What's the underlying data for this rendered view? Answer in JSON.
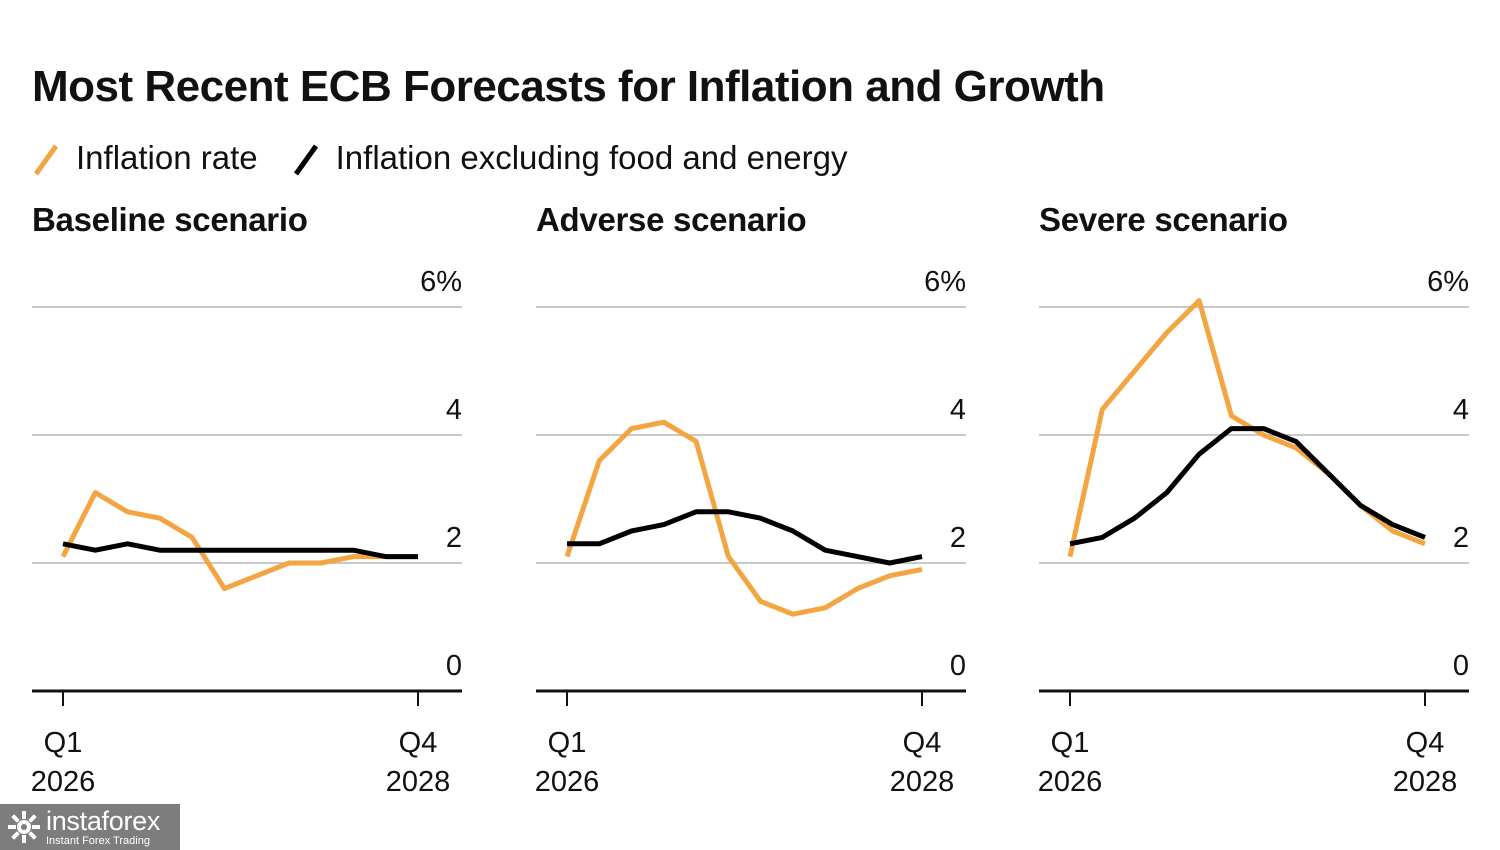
{
  "title": "Most Recent ECB Forecasts for Inflation and Growth",
  "legend": [
    {
      "label": "Inflation rate",
      "color": "#f2a540"
    },
    {
      "label": "Inflation excluding food and energy",
      "color": "#000000"
    }
  ],
  "watermark": {
    "name": "instaforex",
    "tagline": "Instant Forex Trading"
  },
  "chart_data": [
    {
      "type": "line",
      "title": "Baseline scenario",
      "x": [
        "Q1 2026",
        "Q2 2026",
        "Q3 2026",
        "Q4 2026",
        "Q1 2027",
        "Q2 2027",
        "Q3 2027",
        "Q4 2027",
        "Q1 2028",
        "Q2 2028",
        "Q3 2028",
        "Q4 2028"
      ],
      "x_tick_labels": [
        {
          "top": "Q1",
          "bottom": "2026"
        },
        {
          "top": "Q4",
          "bottom": "2028"
        }
      ],
      "ylim": [
        0,
        6
      ],
      "y_ticks": [
        "0",
        "2",
        "4",
        "6%"
      ],
      "grid": true,
      "series": [
        {
          "name": "Inflation rate",
          "color": "#f2a540",
          "values": [
            2.1,
            3.1,
            2.8,
            2.7,
            2.4,
            1.6,
            1.8,
            2.0,
            2.0,
            2.1,
            2.1,
            2.1
          ]
        },
        {
          "name": "Inflation excluding food and energy",
          "color": "#000000",
          "values": [
            2.3,
            2.2,
            2.3,
            2.2,
            2.2,
            2.2,
            2.2,
            2.2,
            2.2,
            2.2,
            2.1,
            2.1
          ]
        }
      ]
    },
    {
      "type": "line",
      "title": "Adverse scenario",
      "x": [
        "Q1 2026",
        "Q2 2026",
        "Q3 2026",
        "Q4 2026",
        "Q1 2027",
        "Q2 2027",
        "Q3 2027",
        "Q4 2027",
        "Q1 2028",
        "Q2 2028",
        "Q3 2028",
        "Q4 2028"
      ],
      "x_tick_labels": [
        {
          "top": "Q1",
          "bottom": "2026"
        },
        {
          "top": "Q4",
          "bottom": "2028"
        }
      ],
      "ylim": [
        0,
        6
      ],
      "y_ticks": [
        "0",
        "2",
        "4",
        "6%"
      ],
      "grid": true,
      "series": [
        {
          "name": "Inflation rate",
          "color": "#f2a540",
          "values": [
            2.1,
            3.6,
            4.1,
            4.2,
            3.9,
            2.1,
            1.4,
            1.2,
            1.3,
            1.6,
            1.8,
            1.9
          ]
        },
        {
          "name": "Inflation excluding food and energy",
          "color": "#000000",
          "values": [
            2.3,
            2.3,
            2.5,
            2.6,
            2.8,
            2.8,
            2.7,
            2.5,
            2.2,
            2.1,
            2.0,
            2.1
          ]
        }
      ]
    },
    {
      "type": "line",
      "title": "Severe scenario",
      "x": [
        "Q1 2026",
        "Q2 2026",
        "Q3 2026",
        "Q4 2026",
        "Q1 2027",
        "Q2 2027",
        "Q3 2027",
        "Q4 2027",
        "Q1 2028",
        "Q2 2028",
        "Q3 2028",
        "Q4 2028"
      ],
      "x_tick_labels": [
        {
          "top": "Q1",
          "bottom": "2026"
        },
        {
          "top": "Q4",
          "bottom": "2028"
        }
      ],
      "ylim": [
        0,
        6
      ],
      "y_ticks": [
        "0",
        "2",
        "4",
        "6%"
      ],
      "grid": true,
      "series": [
        {
          "name": "Inflation rate",
          "color": "#f2a540",
          "values": [
            2.1,
            4.4,
            5.0,
            5.6,
            6.1,
            4.3,
            4.0,
            3.8,
            3.4,
            2.9,
            2.5,
            2.3
          ]
        },
        {
          "name": "Inflation excluding food and energy",
          "color": "#000000",
          "values": [
            2.3,
            2.4,
            2.7,
            3.1,
            3.7,
            4.1,
            4.1,
            3.9,
            3.4,
            2.9,
            2.6,
            2.4
          ]
        }
      ]
    }
  ]
}
